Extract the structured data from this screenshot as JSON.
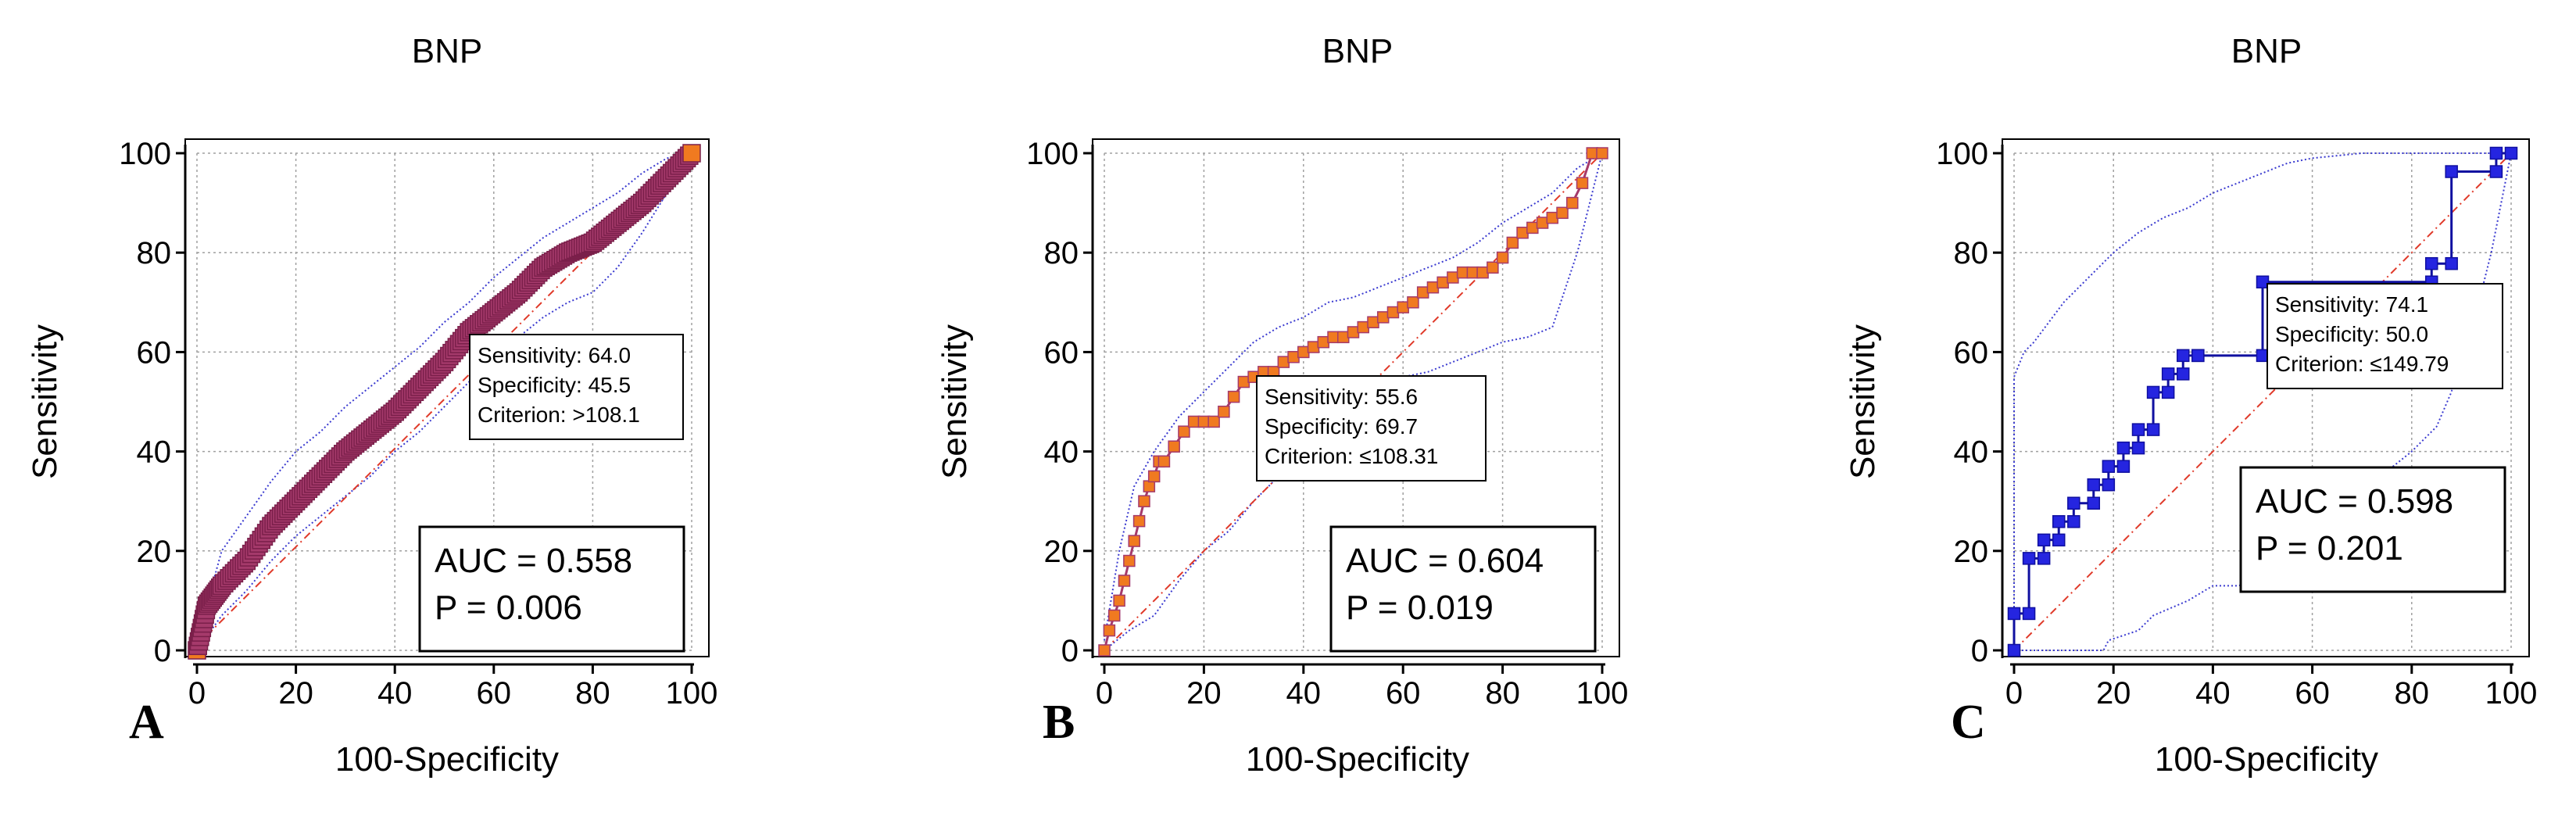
{
  "chart_data": [
    {
      "type": "line",
      "panel_label": "A",
      "title": "BNP",
      "xlabel": "100-Specificity",
      "ylabel": "Sensitivity",
      "xlim": [
        0,
        100
      ],
      "ylim": [
        0,
        100
      ],
      "xticks": [
        0,
        20,
        40,
        60,
        80,
        100
      ],
      "yticks": [
        0,
        20,
        40,
        60,
        80,
        100
      ],
      "grid": true,
      "curve_style": "dense",
      "colors": {
        "marker": "#A53A6B",
        "marker_edge": "#7A1F4A",
        "end_marker": "#F07A20",
        "ci": "#3B3BD0",
        "diagonal": "#E03A2A"
      },
      "roc": {
        "x": [
          0,
          2,
          5,
          10,
          15,
          20,
          25,
          30,
          35,
          40,
          45,
          50,
          55,
          60,
          65,
          70,
          75,
          80,
          85,
          90,
          95,
          100
        ],
        "y": [
          0,
          9,
          13,
          18,
          25,
          30,
          35,
          40,
          44,
          48,
          53,
          58,
          64,
          68,
          72,
          77,
          80,
          82,
          86,
          90,
          95,
          100
        ]
      },
      "ci_upper": {
        "x": [
          0,
          5,
          10,
          15,
          20,
          25,
          30,
          35,
          40,
          45,
          50,
          55,
          60,
          65,
          70,
          75,
          80,
          85,
          90,
          95,
          100
        ],
        "y": [
          2,
          20,
          27,
          34,
          40,
          44,
          49,
          53,
          57,
          61,
          66,
          70,
          75,
          79,
          83,
          86,
          89,
          92,
          96,
          99,
          100
        ]
      },
      "ci_lower": {
        "x": [
          0,
          5,
          10,
          15,
          20,
          25,
          30,
          35,
          40,
          45,
          50,
          55,
          60,
          65,
          70,
          75,
          80,
          85,
          90,
          95,
          100
        ],
        "y": [
          0,
          7,
          12,
          18,
          23,
          27,
          31,
          35,
          40,
          44,
          49,
          54,
          58,
          63,
          67,
          70,
          72,
          77,
          84,
          92,
          100
        ]
      },
      "callout": {
        "sensitivity": "Sensitivity: 64.0",
        "specificity": "Specificity: 45.5",
        "criterion": "Criterion: >108.1"
      },
      "callout_point": [
        54.5,
        64.0
      ],
      "stats": {
        "auc": "AUC = 0.558",
        "p": "P = 0.006"
      }
    },
    {
      "type": "line",
      "panel_label": "B",
      "title": "BNP",
      "xlabel": "100-Specificity",
      "ylabel": "Sensitivity",
      "xlim": [
        0,
        100
      ],
      "ylim": [
        0,
        100
      ],
      "xticks": [
        0,
        20,
        40,
        60,
        80,
        100
      ],
      "yticks": [
        0,
        20,
        40,
        60,
        80,
        100
      ],
      "grid": true,
      "curve_style": "step",
      "colors": {
        "marker": "#F07A20",
        "marker_edge": "#A53A6B",
        "end_marker": "#F07A20",
        "ci": "#3B3BD0",
        "diagonal": "#E03A2A"
      },
      "roc": {
        "x": [
          0,
          1,
          2,
          3,
          4,
          5,
          6,
          7,
          8,
          9,
          10,
          11,
          12,
          14,
          16,
          18,
          20,
          22,
          24,
          26,
          28,
          30,
          32,
          34,
          36,
          38,
          40,
          42,
          44,
          46,
          48,
          50,
          52,
          54,
          56,
          58,
          60,
          62,
          64,
          66,
          68,
          70,
          72,
          74,
          76,
          78,
          80,
          82,
          84,
          86,
          88,
          90,
          92,
          94,
          96,
          98,
          100
        ],
        "y": [
          0,
          4,
          7,
          10,
          14,
          18,
          22,
          26,
          30,
          33,
          35,
          38,
          38,
          41,
          44,
          46,
          46,
          46,
          48,
          51,
          54,
          55,
          56,
          56,
          58,
          59,
          60,
          61,
          62,
          63,
          63,
          64,
          65,
          66,
          67,
          68,
          69,
          70,
          72,
          73,
          74,
          75,
          76,
          76,
          76,
          77,
          79,
          82,
          84,
          85,
          86,
          87,
          88,
          90,
          94,
          100,
          100
        ]
      },
      "ci_upper": {
        "x": [
          0,
          3,
          6,
          10,
          15,
          20,
          25,
          30,
          35,
          40,
          45,
          50,
          55,
          60,
          65,
          70,
          75,
          80,
          85,
          90,
          95,
          100
        ],
        "y": [
          2,
          20,
          33,
          40,
          47,
          52,
          57,
          62,
          65,
          67,
          70,
          71,
          73,
          75,
          77,
          79,
          82,
          86,
          89,
          92,
          97,
          100
        ]
      },
      "ci_lower": {
        "x": [
          0,
          5,
          10,
          15,
          20,
          25,
          30,
          35,
          40,
          45,
          50,
          55,
          60,
          65,
          70,
          75,
          80,
          85,
          90,
          95,
          100
        ],
        "y": [
          0,
          4,
          7,
          14,
          20,
          24,
          30,
          35,
          40,
          45,
          49,
          52,
          55,
          56,
          58,
          60,
          62,
          63,
          65,
          80,
          100
        ]
      },
      "callout": {
        "sensitivity": "Sensitivity: 55.6",
        "specificity": "Specificity: 69.7",
        "criterion": "Criterion: ≤108.31"
      },
      "callout_point": [
        30.3,
        55.6
      ],
      "stats": {
        "auc": "AUC = 0.604",
        "p": "P = 0.019"
      }
    },
    {
      "type": "line",
      "panel_label": "C",
      "title": "BNP",
      "xlabel": "100-Specificity",
      "ylabel": "Sensitivity",
      "xlim": [
        0,
        100
      ],
      "ylim": [
        0,
        100
      ],
      "xticks": [
        0,
        20,
        40,
        60,
        80,
        100
      ],
      "yticks": [
        0,
        20,
        40,
        60,
        80,
        100
      ],
      "grid": true,
      "curve_style": "step",
      "colors": {
        "marker": "#2525E0",
        "marker_edge": "#1010A0",
        "end_marker": "#2525E0",
        "ci": "#3B3BD0",
        "diagonal": "#E03A2A"
      },
      "roc": {
        "x": [
          0,
          0,
          3,
          3,
          6,
          6,
          9,
          9,
          12,
          12,
          16,
          16,
          19,
          19,
          22,
          22,
          25,
          25,
          28,
          28,
          31,
          31,
          34,
          34,
          37,
          37,
          50,
          50,
          84,
          84,
          88,
          88,
          97,
          97,
          100
        ],
        "y": [
          0,
          7.4,
          7.4,
          18.5,
          18.5,
          22.2,
          22.2,
          25.9,
          25.9,
          29.6,
          29.6,
          33.3,
          33.3,
          37.0,
          37.0,
          40.7,
          40.7,
          44.4,
          44.4,
          51.9,
          51.9,
          55.6,
          55.6,
          59.3,
          59.3,
          59.3,
          59.3,
          74.1,
          74.1,
          77.8,
          77.8,
          96.3,
          96.3,
          100,
          100
        ]
      },
      "ci_upper": {
        "x": [
          0,
          0,
          2,
          4,
          7,
          10,
          15,
          20,
          25,
          30,
          35,
          40,
          45,
          50,
          55,
          60,
          70,
          85,
          88,
          92,
          96,
          100
        ],
        "y": [
          0,
          55,
          60,
          62,
          66,
          70,
          75,
          80,
          84,
          87,
          89,
          92,
          94,
          96,
          98,
          99,
          100,
          100,
          100,
          100,
          100,
          100
        ]
      },
      "ci_lower": {
        "x": [
          0,
          10,
          18,
          19,
          25,
          28,
          35,
          40,
          45,
          50,
          55,
          60,
          65,
          70,
          75,
          80,
          85,
          88,
          90,
          93,
          96,
          100
        ],
        "y": [
          0,
          0,
          0,
          2,
          4,
          7,
          10,
          13,
          13,
          14,
          17,
          21,
          24,
          29,
          36,
          40,
          45,
          52,
          60,
          68,
          80,
          100
        ]
      },
      "callout": {
        "sensitivity": "Sensitivity: 74.1",
        "specificity": "Specificity: 50.0",
        "criterion": "Criterion: ≤149.79"
      },
      "callout_point": [
        50.0,
        74.1
      ],
      "stats": {
        "auc": "AUC = 0.598",
        "p": "P = 0.201"
      }
    }
  ]
}
